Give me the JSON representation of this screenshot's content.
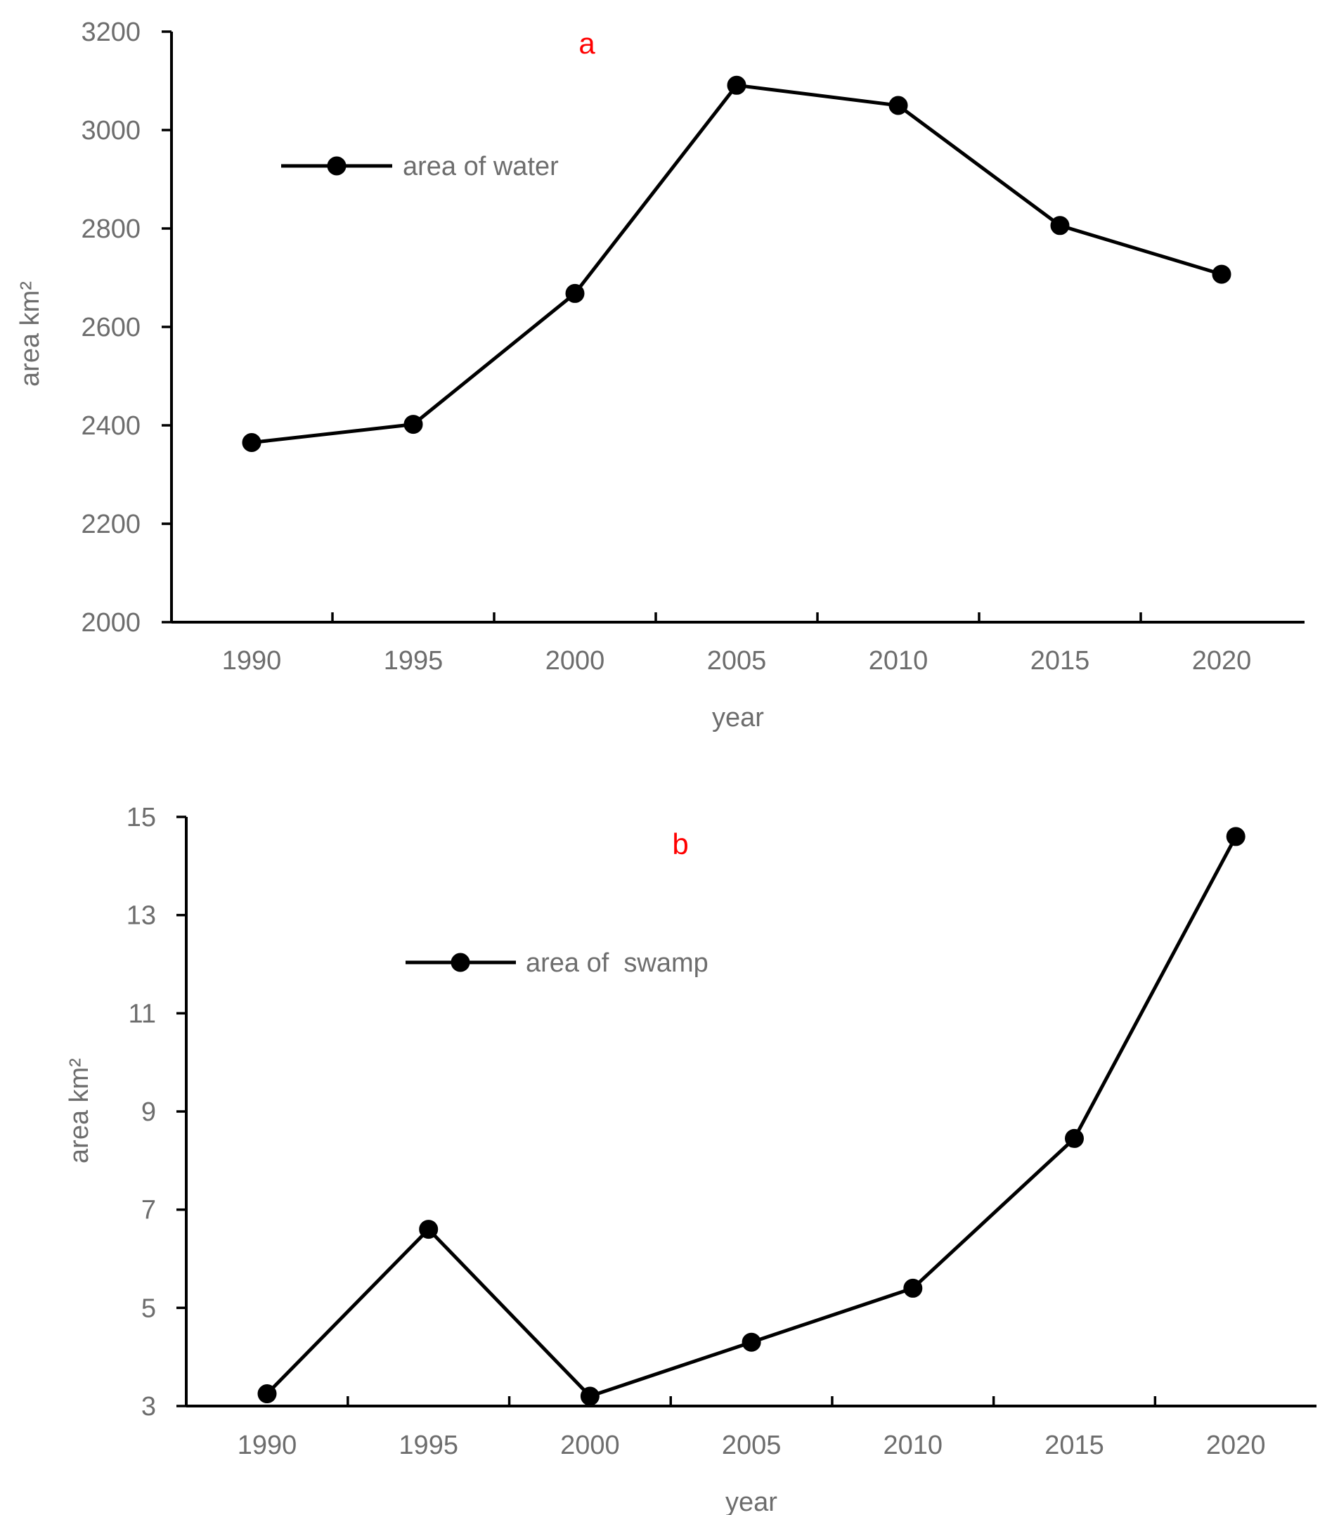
{
  "colors": {
    "series": "#000000",
    "panel_label": "#ff0000",
    "text": "#6d6d6d",
    "axis": "#000000"
  },
  "chart_data": [
    {
      "type": "line",
      "panel_label": "a",
      "title": "",
      "xlabel": "year",
      "ylabel": "area  km²",
      "categories": [
        "1990",
        "1995",
        "2000",
        "2005",
        "2010",
        "2015",
        "2020"
      ],
      "yticks": [
        "2000",
        "2200",
        "2400",
        "2600",
        "2800",
        "3000",
        "3200"
      ],
      "ylim": [
        2000,
        3200
      ],
      "grid": false,
      "legend_position": "top-left",
      "series": [
        {
          "name": "area of water",
          "values": [
            2365,
            2402,
            2668,
            3091,
            3050,
            2806,
            2707
          ]
        }
      ]
    },
    {
      "type": "line",
      "panel_label": "b",
      "title": "",
      "xlabel": "year",
      "ylabel": "area  km²",
      "categories": [
        "1990",
        "1995",
        "2000",
        "2005",
        "2010",
        "2015",
        "2020"
      ],
      "yticks": [
        "3",
        "5",
        "7",
        "9",
        "11",
        "13",
        "15"
      ],
      "ylim": [
        3,
        15
      ],
      "grid": false,
      "legend_position": "top-left",
      "series": [
        {
          "name": "area of  swamp",
          "values": [
            3.25,
            6.6,
            3.2,
            4.3,
            5.4,
            8.45,
            14.6
          ]
        }
      ]
    }
  ]
}
